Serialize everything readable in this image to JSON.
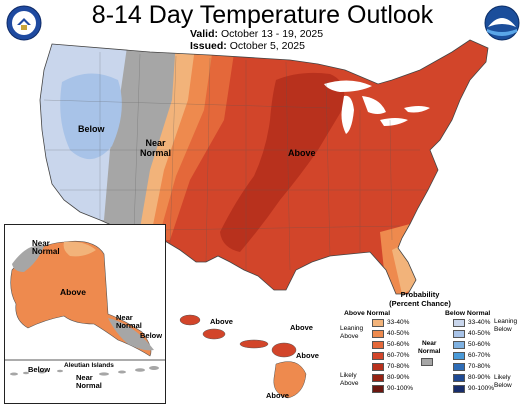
{
  "title": "8-14 Day Temperature Outlook",
  "valid_label": "Valid:",
  "valid_dates": "October 13 - 19, 2025",
  "issued_label": "Issued:",
  "issued_date": "October 5, 2025",
  "labels": {
    "conus_below": "Below",
    "conus_near": "Near\nNormal",
    "conus_above": "Above",
    "alaska_near": "Near\nNormal",
    "alaska_above": "Above",
    "alaska_near_se": "Near\nNormal",
    "alaska_below_se": "Below",
    "aleutian_title": "Aleutian Islands",
    "aleutian_below": "Below",
    "aleutian_near": "Near\nNormal",
    "hawaii_above_1": "Above",
    "hawaii_above_2": "Above",
    "hawaii_above_3": "Above",
    "hawaii_above_4": "Above"
  },
  "legend": {
    "title": "Probability\n(Percent Chance)",
    "above_head": "Above Normal",
    "below_head": "Below Normal",
    "near_head": "Near\nNormal",
    "leaning_above": "Leaning\nAbove",
    "likely_above": "Likely\nAbove",
    "leaning_below": "Leaning\nBelow",
    "likely_below": "Likely\nBelow",
    "bins": [
      "33-40%",
      "40-50%",
      "50-60%",
      "60-70%",
      "70-80%",
      "80-90%",
      "90-100%"
    ],
    "above_colors": [
      "#f2b37a",
      "#ee8a4e",
      "#e4683a",
      "#d2452a",
      "#b8311d",
      "#962314",
      "#6b1710"
    ],
    "below_colors": [
      "#c9d6ec",
      "#a8c3e8",
      "#7fb1e1",
      "#4a9ad8",
      "#2e6cb6",
      "#1f4a93",
      "#172d6b"
    ],
    "near_color": "#a6a6a6"
  },
  "colors": {
    "below_33_40": "#c9d6ec",
    "below_40_50": "#a8c3e8",
    "near": "#a6a6a6",
    "above_33_40": "#f2b37a",
    "above_40_50": "#ee8a4e",
    "above_50_60": "#e4683a",
    "above_60_70": "#d2452a",
    "above_70_80": "#b8311d"
  },
  "logos": {
    "left": "department-of-commerce-seal",
    "right": "noaa-logo"
  }
}
